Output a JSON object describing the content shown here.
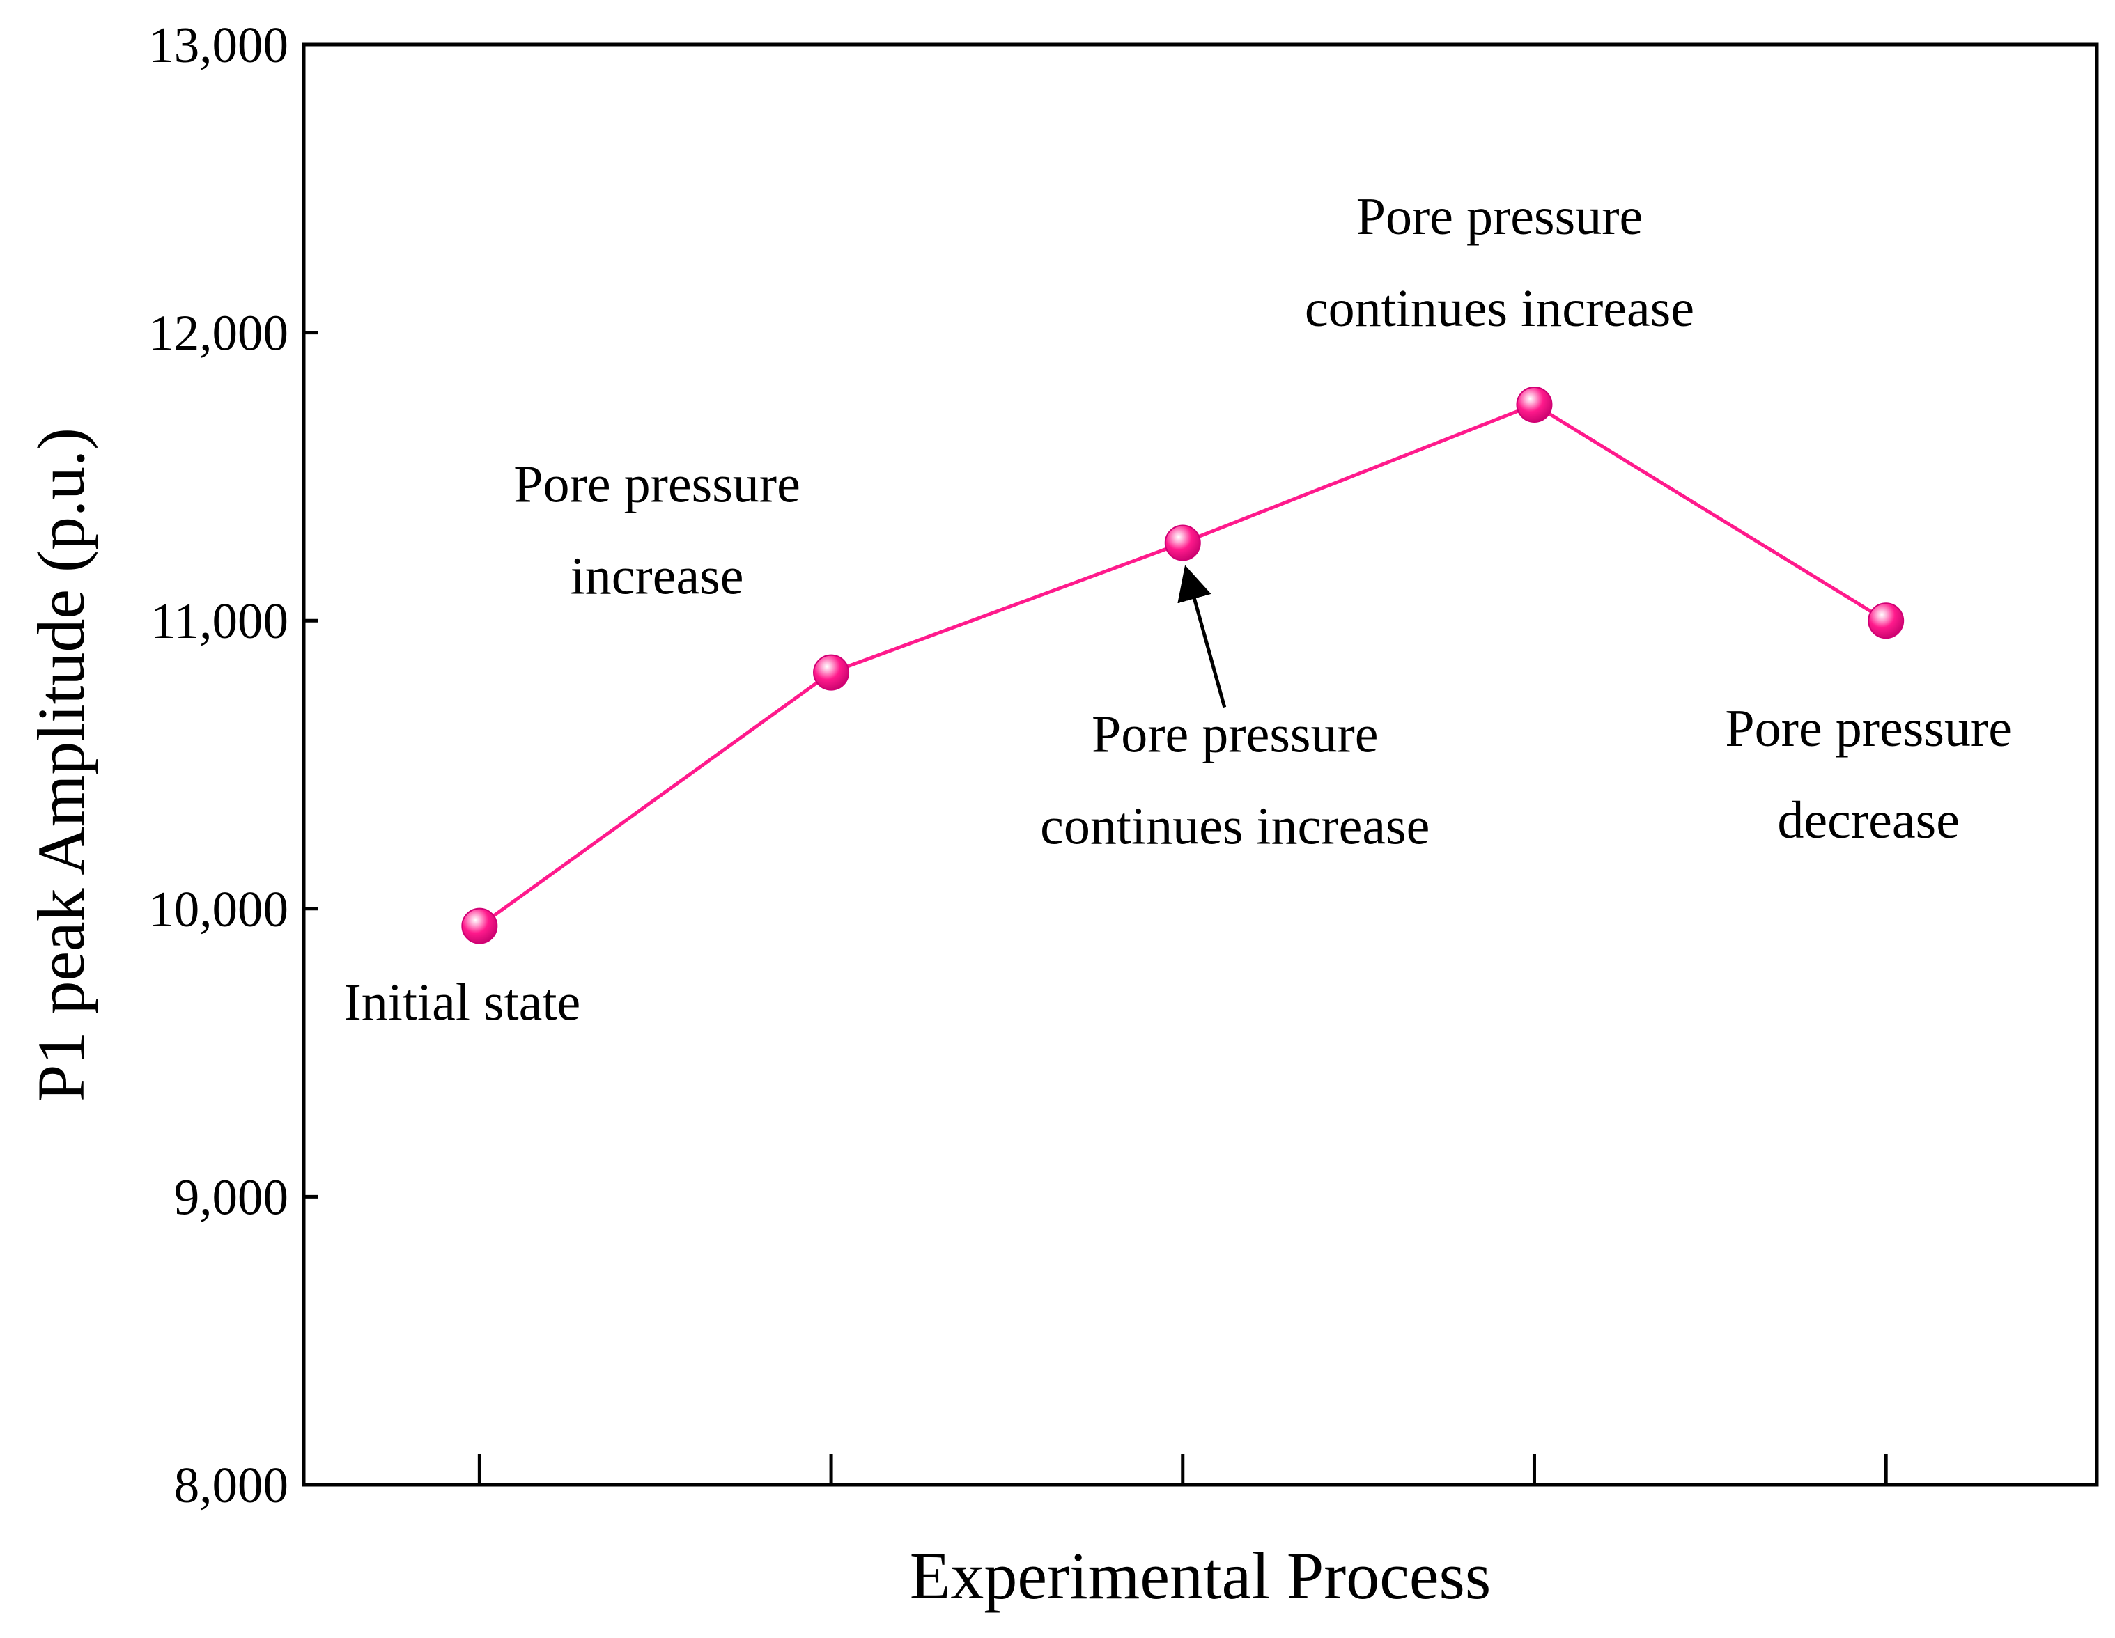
{
  "chart_data": {
    "type": "line",
    "title": "",
    "xlabel": "Experimental Process",
    "ylabel": "P1 peak Amplitude (p.u.)",
    "ylim": [
      8000,
      13000
    ],
    "yticks": [
      "8,000",
      "9,000",
      "10,000",
      "11,000",
      "12,000",
      "13,000"
    ],
    "ytick_values": [
      8000,
      9000,
      10000,
      11000,
      12000,
      13000
    ],
    "x": [
      1,
      2,
      3,
      4,
      5
    ],
    "xlim": [
      0.5,
      5.6
    ],
    "series": [
      {
        "name": "P1 peak Amplitude",
        "color": "#ff1a8c",
        "values": [
          9940,
          10820,
          11270,
          11750,
          11000
        ]
      }
    ],
    "grid": false,
    "annotations": [
      {
        "point_index": 0,
        "lines": [
          "Initial state"
        ]
      },
      {
        "point_index": 1,
        "lines": [
          "Pore pressure",
          "increase"
        ]
      },
      {
        "point_index": 2,
        "lines": [
          "Pore pressure",
          "continues increase"
        ],
        "arrow": true
      },
      {
        "point_index": 3,
        "lines": [
          "Pore pressure",
          "continues increase"
        ]
      },
      {
        "point_index": 4,
        "lines": [
          "Pore pressure",
          "decrease"
        ]
      }
    ]
  }
}
